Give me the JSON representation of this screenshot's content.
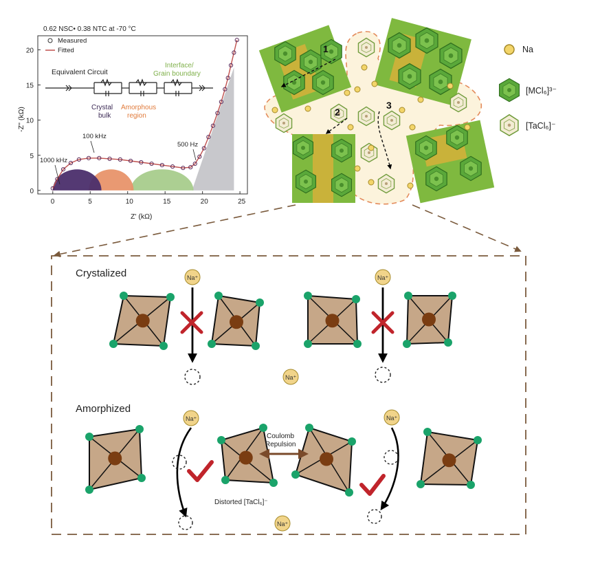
{
  "nyquist_plot": {
    "subtitle": "0.62 NSC• 0.38 NTC at -70 °C",
    "legend": {
      "measured": "Measured",
      "fitted": "Fitted"
    },
    "xlabel": "Z' (kΩ)",
    "ylabel": "-Z'' (kΩ)",
    "x_ticks": [
      "0",
      "5",
      "10",
      "15",
      "20",
      "25"
    ],
    "y_ticks": [
      "0",
      "5",
      "10",
      "15",
      "20"
    ],
    "circuit_title": "Equivalent Circuit",
    "region_labels": {
      "crystal_bulk_1": "Crystal",
      "crystal_bulk_2": "bulk",
      "amorphous_1": "Amorphous",
      "amorphous_2": "region",
      "interface_1": "Interface/",
      "interface_2": "Grain boundary"
    },
    "freq_labels": {
      "f1000": "1000 kHz",
      "f100": "100 kHz",
      "f500": "500 Hz"
    },
    "colors": {
      "crystal": "#4b2e6b",
      "amorphous": "#e8946a",
      "interface": "#a8cc8c",
      "warburg": "#c8c8cc",
      "crystal_text": "#3c2a55",
      "amorphous_text": "#e07a3a",
      "interface_text": "#7fb04a"
    },
    "chart_data": {
      "type": "scatter",
      "xlim": [
        -2,
        26
      ],
      "ylim": [
        -0.5,
        22
      ],
      "series": [
        {
          "name": "Measured",
          "marker": "open-circle",
          "x": [
            0,
            0.6,
            1.4,
            2.4,
            3.5,
            4.8,
            6.2,
            7.6,
            9.0,
            10.4,
            11.8,
            13.2,
            14.6,
            16.0,
            17.4,
            18.4,
            19.0,
            19.6,
            20.2,
            20.8,
            21.4,
            22.0,
            22.5,
            23.0,
            23.4,
            23.8,
            24.2,
            24.6
          ],
          "y": [
            0.3,
            1.6,
            3.0,
            3.9,
            4.4,
            4.6,
            4.6,
            4.5,
            4.4,
            4.2,
            4.0,
            3.8,
            3.6,
            3.4,
            3.2,
            3.3,
            3.8,
            4.8,
            6.0,
            7.6,
            9.2,
            11.0,
            12.6,
            14.4,
            16.0,
            17.8,
            19.6,
            21.4
          ]
        },
        {
          "name": "Fitted",
          "marker": "line",
          "x": [
            0,
            0.6,
            1.4,
            2.4,
            3.5,
            4.8,
            6.2,
            7.6,
            9.0,
            10.4,
            11.8,
            13.2,
            14.6,
            16.0,
            17.4,
            18.4,
            19.0,
            19.6,
            20.2,
            20.8,
            21.4,
            22.0,
            22.5,
            23.0,
            23.4,
            23.8,
            24.2,
            24.6
          ],
          "y": [
            0.3,
            1.6,
            3.0,
            3.9,
            4.4,
            4.6,
            4.6,
            4.5,
            4.4,
            4.2,
            4.0,
            3.8,
            3.6,
            3.4,
            3.2,
            3.3,
            3.8,
            4.8,
            6.0,
            7.6,
            9.2,
            11.0,
            12.6,
            14.4,
            16.0,
            17.8,
            19.6,
            21.4
          ]
        }
      ],
      "semicircles": [
        {
          "region": "Crystal bulk",
          "x_start": 0,
          "x_end": 6.5,
          "height": 3.0
        },
        {
          "region": "Amorphous region",
          "x_start": 4.8,
          "x_end": 10.8,
          "height": 3.0
        },
        {
          "region": "Interface/Grain boundary",
          "x_start": 10.4,
          "x_end": 18.8,
          "height": 3.0
        }
      ],
      "warburg_region": {
        "x_start": 18.6,
        "x_end": 24.2,
        "peak": 17.5
      }
    }
  },
  "structure_labels": {
    "path_1": "1",
    "path_2": "2",
    "path_3": "3"
  },
  "legend_right": {
    "na": "Na",
    "mcl6": "[MCl₆]³⁻",
    "tacl6": "[TaCl₆]⁻"
  },
  "bottom_panel": {
    "crystalized_title": "Crystalized",
    "amorphized_title": "Amorphized",
    "na_label": "Na⁺",
    "coulomb_1": "Coulomb",
    "coulomb_2": "Repulsion",
    "distorted": "Distorted [TaCl₆]⁻",
    "colors": {
      "octa_fill": "#c6a788",
      "octa_center": "#7a3d12",
      "chlorine": "#1aa36a",
      "na_fill": "#f1d48a",
      "blocked": "#c0242b",
      "allowed": "#c0242b",
      "dash_border": "#7a5a3c"
    }
  }
}
